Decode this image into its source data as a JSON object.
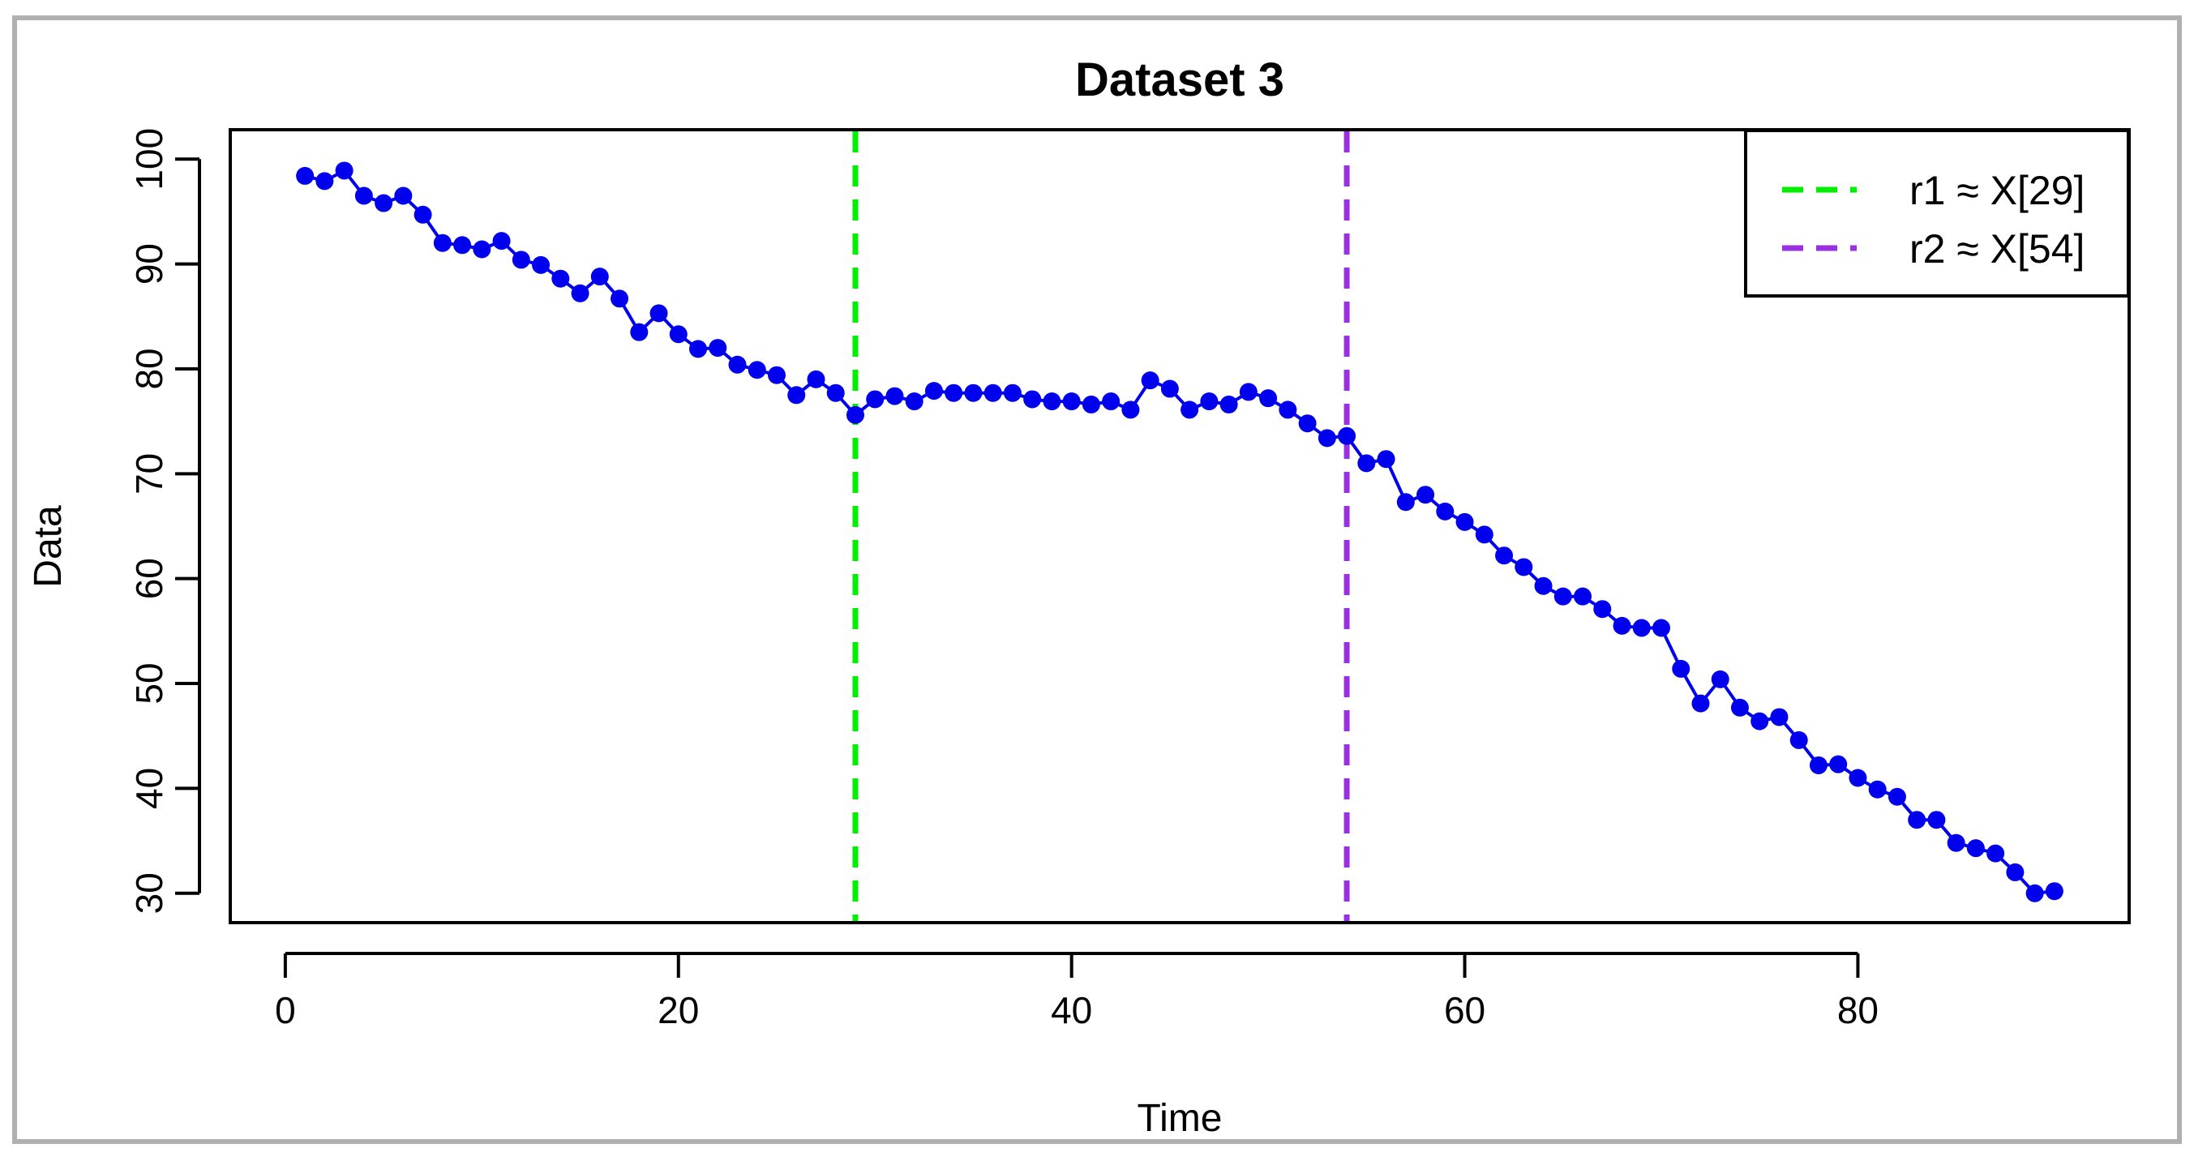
{
  "chart_data": {
    "type": "line",
    "title": "Dataset 3",
    "xlabel": "Time",
    "ylabel": "Data",
    "xlim": [
      -2.8,
      93.8
    ],
    "ylim": [
      27.2,
      102.8
    ],
    "x_ticks": [
      0,
      20,
      40,
      60,
      80
    ],
    "y_ticks": [
      30,
      40,
      50,
      60,
      70,
      80,
      90,
      100
    ],
    "grid": false,
    "legend_position": "top-right",
    "series": [
      {
        "color": "#0000ee",
        "x": [
          1,
          2,
          3,
          4,
          5,
          6,
          7,
          8,
          9,
          10,
          11,
          12,
          13,
          14,
          15,
          16,
          17,
          18,
          19,
          20,
          21,
          22,
          23,
          24,
          25,
          26,
          27,
          28,
          29,
          30,
          31,
          32,
          33,
          34,
          35,
          36,
          37,
          38,
          39,
          40,
          41,
          42,
          43,
          44,
          45,
          46,
          47,
          48,
          49,
          50,
          51,
          52,
          53,
          54,
          55,
          56,
          57,
          58,
          59,
          60,
          61,
          62,
          63,
          64,
          65,
          66,
          67,
          68,
          69,
          70,
          71,
          72,
          73,
          74,
          75,
          76,
          77,
          78,
          79,
          80,
          81,
          82,
          83,
          84,
          85,
          86,
          87,
          88,
          89,
          90
        ],
        "y": [
          98.4,
          97.9,
          98.9,
          96.5,
          95.8,
          96.5,
          94.7,
          92.0,
          91.8,
          91.4,
          92.2,
          90.4,
          89.9,
          88.6,
          87.2,
          88.8,
          86.7,
          83.5,
          85.3,
          83.3,
          81.9,
          82.0,
          80.4,
          79.9,
          79.4,
          77.5,
          79.0,
          77.7,
          75.6,
          77.1,
          77.4,
          76.9,
          77.9,
          77.7,
          77.7,
          77.7,
          77.7,
          77.1,
          76.9,
          76.9,
          76.6,
          76.9,
          76.1,
          78.9,
          78.1,
          76.1,
          76.9,
          76.6,
          77.8,
          77.2,
          76.1,
          74.8,
          73.4,
          73.6,
          71.0,
          71.4,
          67.3,
          68.0,
          66.4,
          65.4,
          64.2,
          62.2,
          61.1,
          59.3,
          58.3,
          58.3,
          57.1,
          55.5,
          55.3,
          55.3,
          51.4,
          48.1,
          50.4,
          47.7,
          46.4,
          46.8,
          44.6,
          42.2,
          42.3,
          41.0,
          39.9,
          39.2,
          37.0,
          37.0,
          34.8,
          34.3,
          33.8,
          32.0,
          30.0,
          30.2
        ]
      }
    ],
    "vlines": [
      {
        "x": 29,
        "color": "#00ee00",
        "label": "r1 ≈ X[29]"
      },
      {
        "x": 54,
        "color": "#9b30e0",
        "label": "r2 ≈ X[54]"
      }
    ]
  }
}
